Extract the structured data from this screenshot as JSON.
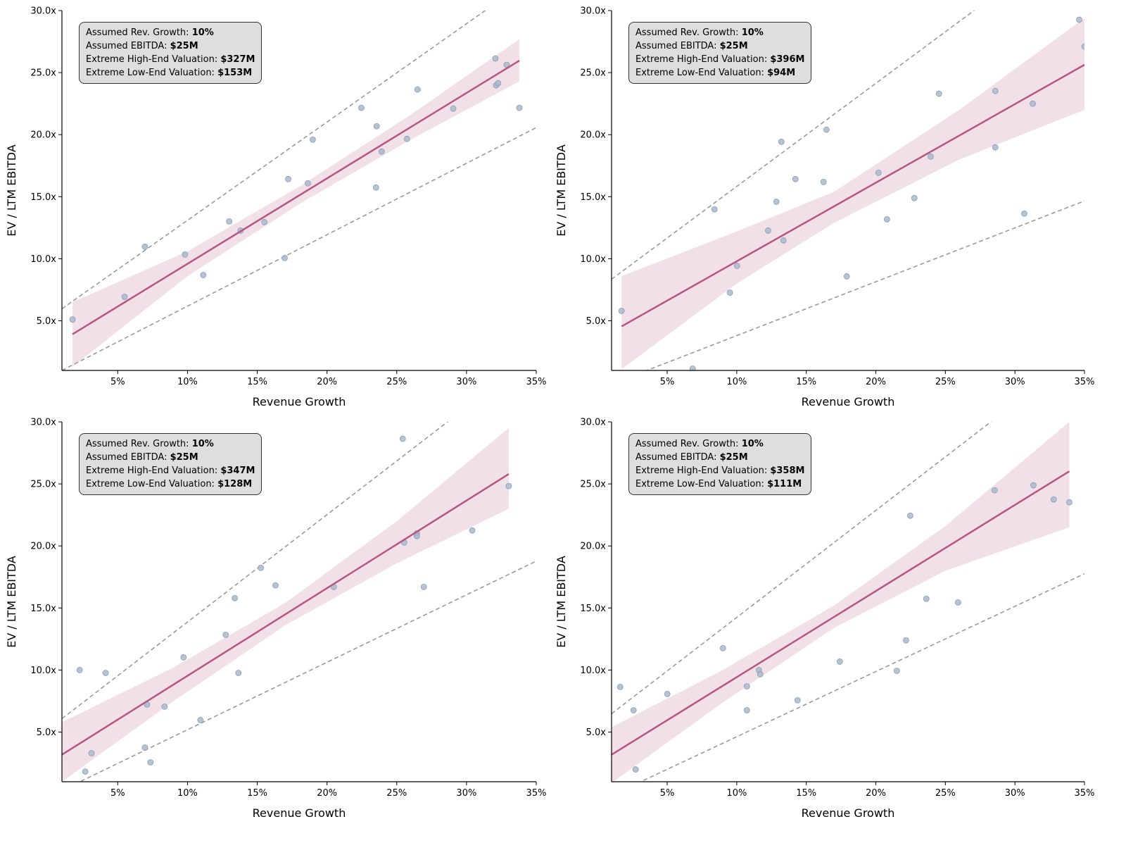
{
  "colors": {
    "points": "#a9b9cc",
    "point_edge": "#8c9cb0",
    "regression": "#b5577f",
    "band": "#f1e0e8",
    "dashed": "#9a9a9a"
  },
  "chart_data": [
    {
      "type": "scatter",
      "xlabel": "Revenue Growth",
      "ylabel": "EV / LTM EBITDA",
      "xlim": [
        1,
        35
      ],
      "ylim": [
        1,
        30
      ],
      "xticks": [
        "5%",
        "10%",
        "15%",
        "20%",
        "25%",
        "30%",
        "35%"
      ],
      "yticks": [
        "5.0x",
        "10.0x",
        "15.0x",
        "20.0x",
        "25.0x",
        "30.0x"
      ],
      "grid": false,
      "annotation": [
        {
          "label": "Assumed Rev. Growth: ",
          "value": "10%"
        },
        {
          "label": "Assumed EBITDA: ",
          "value": "$25M"
        },
        {
          "label": "Extreme High-End Valuation: ",
          "value": "$327M"
        },
        {
          "label": "Extreme Low-End Valuation: ",
          "value": "$153M"
        }
      ],
      "points": [
        [
          1.76,
          5.11
        ],
        [
          5.49,
          6.93
        ],
        [
          6.95,
          10.97
        ],
        [
          9.82,
          10.34
        ],
        [
          11.13,
          8.69
        ],
        [
          12.99,
          13.01
        ],
        [
          13.8,
          12.27
        ],
        [
          15.51,
          12.95
        ],
        [
          16.97,
          10.06
        ],
        [
          17.22,
          16.42
        ],
        [
          18.63,
          16.08
        ],
        [
          18.98,
          19.6
        ],
        [
          22.46,
          22.16
        ],
        [
          23.56,
          20.68
        ],
        [
          23.51,
          15.74
        ],
        [
          23.92,
          18.64
        ],
        [
          25.73,
          19.66
        ],
        [
          26.49,
          23.64
        ],
        [
          29.05,
          22.1
        ],
        [
          32.07,
          26.14
        ],
        [
          32.12,
          23.98
        ],
        [
          32.27,
          24.15
        ],
        [
          32.88,
          25.63
        ],
        [
          33.79,
          22.16
        ]
      ],
      "regression": [
        [
          1.76,
          3.92
        ],
        [
          33.79,
          25.97
        ]
      ],
      "confidence_band": {
        "x": [
          1.76,
          10,
          18,
          26,
          33.79
        ],
        "lower": [
          1.3,
          8.6,
          14.4,
          19.6,
          24.3
        ],
        "upper": [
          6.5,
          10.6,
          15.8,
          21.6,
          27.7
        ]
      },
      "upper_bound": [
        [
          1,
          5.97
        ],
        [
          35,
          32.9
        ]
      ],
      "lower_bound": [
        [
          1,
          1.0
        ],
        [
          35,
          20.57
        ]
      ]
    },
    {
      "type": "scatter",
      "xlabel": "Revenue Growth",
      "ylabel": "EV / LTM EBITDA",
      "xlim": [
        1,
        35
      ],
      "ylim": [
        1,
        30
      ],
      "xticks": [
        "5%",
        "10%",
        "15%",
        "20%",
        "25%",
        "30%",
        "35%"
      ],
      "yticks": [
        "5.0x",
        "10.0x",
        "15.0x",
        "20.0x",
        "25.0x",
        "30.0x"
      ],
      "grid": false,
      "annotation": [
        {
          "label": "Assumed Rev. Growth: ",
          "value": "10%"
        },
        {
          "label": "Assumed EBITDA: ",
          "value": "$25M"
        },
        {
          "label": "Extreme High-End Valuation: ",
          "value": "$396M"
        },
        {
          "label": "Extreme Low-End Valuation: ",
          "value": "$94M"
        }
      ],
      "points": [
        [
          1.72,
          5.8
        ],
        [
          6.83,
          1.14
        ],
        [
          8.4,
          13.98
        ],
        [
          9.51,
          7.27
        ],
        [
          10.02,
          9.43
        ],
        [
          12.25,
          12.27
        ],
        [
          12.85,
          14.6
        ],
        [
          13.21,
          19.43
        ],
        [
          13.36,
          11.48
        ],
        [
          14.22,
          16.42
        ],
        [
          16.24,
          16.19
        ],
        [
          16.45,
          20.4
        ],
        [
          17.91,
          8.58
        ],
        [
          20.19,
          16.93
        ],
        [
          20.8,
          13.18
        ],
        [
          22.77,
          14.89
        ],
        [
          23.94,
          18.24
        ],
        [
          24.54,
          23.3
        ],
        [
          28.59,
          23.52
        ],
        [
          28.59,
          18.98
        ],
        [
          30.67,
          13.64
        ],
        [
          31.28,
          22.5
        ],
        [
          34.62,
          29.26
        ],
        [
          35.0,
          27.1
        ]
      ],
      "regression": [
        [
          1.72,
          4.55
        ],
        [
          35,
          25.63
        ]
      ],
      "confidence_band": {
        "x": [
          1.72,
          10,
          17,
          26,
          35
        ],
        "lower": [
          1.1,
          8.0,
          12.9,
          18.0,
          22.0
        ],
        "upper": [
          8.6,
          12.2,
          15.4,
          22.0,
          29.4
        ]
      },
      "upper_bound": [
        [
          1,
          8.35
        ],
        [
          35,
          36.6
        ]
      ],
      "lower_bound": [
        [
          1,
          -0.1
        ],
        [
          35,
          14.66
        ]
      ]
    },
    {
      "type": "scatter",
      "xlabel": "Revenue Growth",
      "ylabel": "EV / LTM EBITDA",
      "xlim": [
        1,
        35
      ],
      "ylim": [
        1,
        30
      ],
      "xticks": [
        "5%",
        "10%",
        "15%",
        "20%",
        "25%",
        "30%",
        "35%"
      ],
      "yticks": [
        "5.0x",
        "10.0x",
        "15.0x",
        "20.0x",
        "25.0x",
        "30.0x"
      ],
      "grid": false,
      "annotation": [
        {
          "label": "Assumed Rev. Growth: ",
          "value": "10%"
        },
        {
          "label": "Assumed EBITDA: ",
          "value": "$25M"
        },
        {
          "label": "Extreme High-End Valuation: ",
          "value": "$347M"
        },
        {
          "label": "Extreme Low-End Valuation: ",
          "value": "$128M"
        }
      ],
      "points": [
        [
          2.27,
          10.0
        ],
        [
          2.67,
          1.82
        ],
        [
          3.12,
          3.3
        ],
        [
          4.13,
          9.77
        ],
        [
          6.95,
          3.75
        ],
        [
          7.1,
          7.22
        ],
        [
          7.35,
          2.56
        ],
        [
          8.36,
          7.05
        ],
        [
          9.72,
          11.02
        ],
        [
          10.93,
          5.97
        ],
        [
          12.74,
          12.84
        ],
        [
          13.39,
          15.8
        ],
        [
          13.65,
          9.77
        ],
        [
          15.26,
          18.24
        ],
        [
          16.31,
          16.82
        ],
        [
          20.49,
          16.7
        ],
        [
          25.43,
          28.64
        ],
        [
          25.53,
          20.28
        ],
        [
          26.44,
          21.02
        ],
        [
          26.44,
          20.8
        ],
        [
          26.94,
          16.7
        ],
        [
          30.41,
          21.25
        ],
        [
          33.03,
          24.83
        ]
      ],
      "regression": [
        [
          1,
          3.18
        ],
        [
          33.03,
          25.8
        ]
      ],
      "confidence_band": {
        "x": [
          1,
          9,
          17,
          25,
          33.03
        ],
        "lower": [
          1.0,
          7.5,
          13.6,
          18.6,
          23.0
        ],
        "upper": [
          5.8,
          10.2,
          15.4,
          22.0,
          29.5
        ]
      },
      "upper_bound": [
        [
          1,
          6.08
        ],
        [
          35,
          35.5
        ]
      ],
      "lower_bound": [
        [
          1,
          0.3
        ],
        [
          35,
          18.78
        ]
      ]
    },
    {
      "type": "scatter",
      "xlabel": "Revenue Growth",
      "ylabel": "EV / LTM EBITDA",
      "xlim": [
        1,
        35
      ],
      "ylim": [
        1,
        30
      ],
      "xticks": [
        "5%",
        "10%",
        "15%",
        "20%",
        "25%",
        "30%",
        "35%"
      ],
      "yticks": [
        "5.0x",
        "10.0x",
        "15.0x",
        "20.0x",
        "25.0x",
        "30.0x"
      ],
      "grid": false,
      "annotation": [
        {
          "label": "Assumed Rev. Growth: ",
          "value": "10%"
        },
        {
          "label": "Assumed EBITDA: ",
          "value": "$25M"
        },
        {
          "label": "Extreme High-End Valuation: ",
          "value": "$358M"
        },
        {
          "label": "Extreme Low-End Valuation: ",
          "value": "$111M"
        }
      ],
      "points": [
        [
          1.62,
          8.64
        ],
        [
          2.58,
          6.76
        ],
        [
          2.73,
          1.99
        ],
        [
          5.01,
          8.07
        ],
        [
          9.01,
          11.76
        ],
        [
          10.73,
          8.69
        ],
        [
          10.73,
          6.76
        ],
        [
          11.59,
          10.0
        ],
        [
          11.69,
          9.66
        ],
        [
          14.37,
          7.56
        ],
        [
          17.41,
          10.68
        ],
        [
          21.51,
          9.94
        ],
        [
          22.17,
          12.39
        ],
        [
          22.47,
          22.44
        ],
        [
          23.63,
          15.74
        ],
        [
          25.91,
          15.45
        ],
        [
          28.54,
          24.49
        ],
        [
          31.33,
          24.89
        ],
        [
          32.79,
          23.75
        ],
        [
          33.91,
          23.52
        ]
      ],
      "regression": [
        [
          1,
          3.18
        ],
        [
          33.91,
          26.02
        ]
      ],
      "confidence_band": {
        "x": [
          1,
          9,
          17,
          25,
          33.91
        ],
        "lower": [
          0.9,
          7.4,
          13.4,
          18.0,
          21.5
        ],
        "upper": [
          5.4,
          10.0,
          15.2,
          21.6,
          30.0
        ]
      },
      "upper_bound": [
        [
          1,
          6.48
        ],
        [
          35,
          35.8
        ]
      ],
      "lower_bound": [
        [
          1,
          -0.1
        ],
        [
          35,
          17.76
        ]
      ]
    }
  ]
}
